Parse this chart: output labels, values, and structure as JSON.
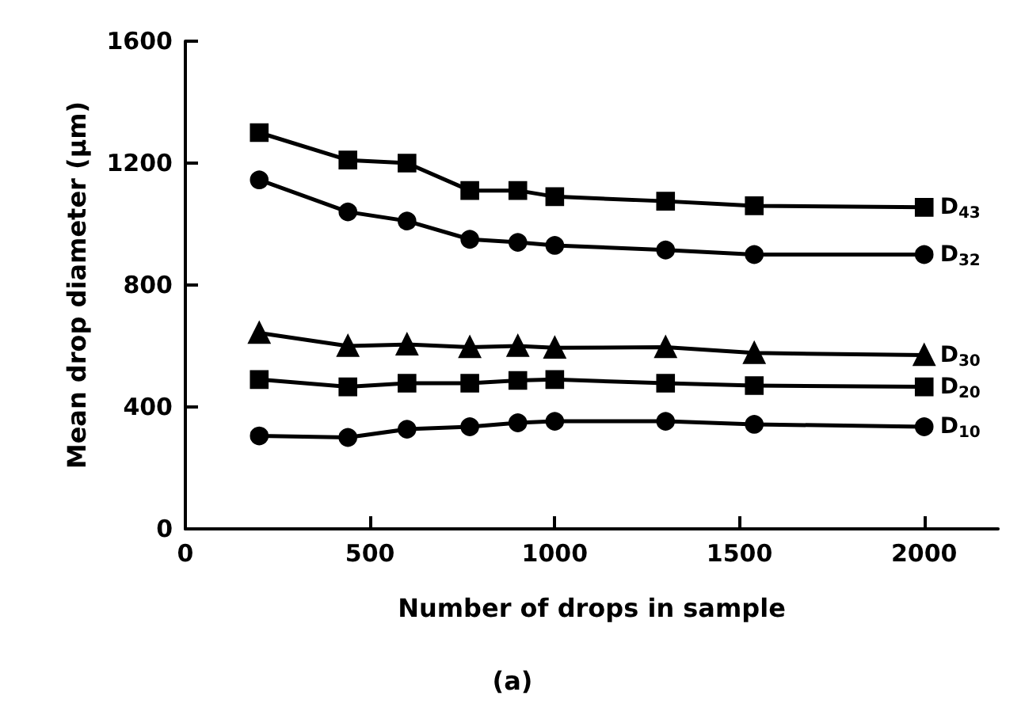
{
  "chart_data": {
    "type": "line",
    "xlabel": "Number of drops in sample",
    "ylabel": "Mean drop diameter (μm)",
    "annotations": [
      "(a)"
    ],
    "x": [
      200,
      440,
      600,
      770,
      900,
      1000,
      1300,
      1540,
      2000
    ],
    "xlim": [
      0,
      2200
    ],
    "xticks": [
      0,
      500,
      1000,
      1500,
      2000
    ],
    "ylim": [
      0,
      1600
    ],
    "yticks": [
      0,
      400,
      800,
      1200,
      1600
    ],
    "grid": false,
    "legend": false,
    "line_style": "solid",
    "series": [
      {
        "name": "D$_{43}$",
        "color": "#000000",
        "marker": "square",
        "values": [
          1300,
          1210,
          1200,
          1110,
          1110,
          1090,
          1075,
          1060,
          1055
        ]
      },
      {
        "name": "D$_{32}$",
        "color": "#000000",
        "marker": "circle",
        "values": [
          1145,
          1040,
          1010,
          950,
          940,
          930,
          915,
          900,
          900
        ]
      },
      {
        "name": "D$_{30}$",
        "color": "#000000",
        "marker": "triangle",
        "values": [
          643,
          600,
          605,
          596,
          600,
          594,
          596,
          577,
          570
        ]
      },
      {
        "name": "D$_{20}$",
        "color": "#000000",
        "marker": "square",
        "values": [
          490,
          466,
          478,
          478,
          487,
          490,
          478,
          470,
          466
        ]
      },
      {
        "name": "D$_{10}$",
        "color": "#000000",
        "marker": "circle",
        "values": [
          305,
          300,
          327,
          335,
          348,
          353,
          353,
          343,
          335
        ]
      }
    ]
  }
}
